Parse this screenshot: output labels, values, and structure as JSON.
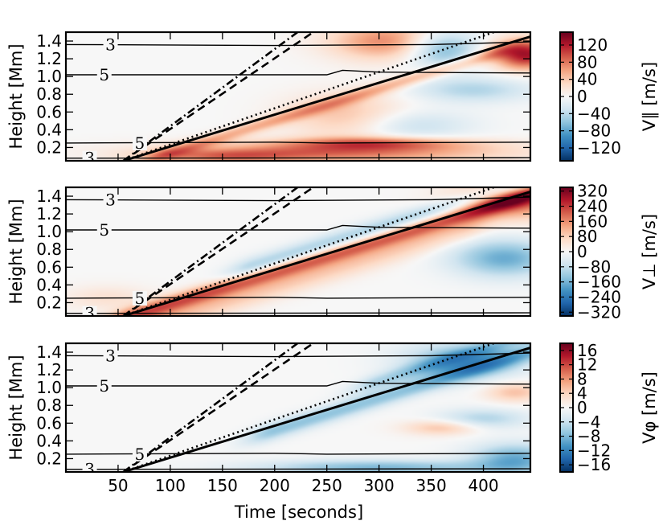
{
  "chart_data": {
    "type": "heatmap",
    "xlabel": "Time [seconds]",
    "ylabel": "Height [Mm]",
    "xlim": [
      0,
      445
    ],
    "ylim": [
      0.05,
      1.5
    ],
    "xticks": [
      50,
      100,
      150,
      200,
      250,
      300,
      350,
      400
    ],
    "yticks": [
      0.2,
      0.4,
      0.6,
      0.8,
      1.0,
      1.2,
      1.4
    ],
    "ytick_labels": [
      "0.2",
      "0.4",
      "0.6",
      "0.8",
      "1.0",
      "1.2",
      "1.4"
    ],
    "colormap": "RdBu_r",
    "colors": {
      "positive": "#67001f",
      "neutral": "#f7f7f7",
      "negative": "#053061"
    },
    "reference_lines": [
      {
        "name": "fast-mode-front",
        "style": "solid",
        "points": [
          [
            55,
            0.05
          ],
          [
            445,
            1.45
          ]
        ]
      },
      {
        "name": "dotted-line",
        "style": "dotted",
        "points": [
          [
            55,
            0.05
          ],
          [
            410,
            1.5
          ]
        ]
      },
      {
        "name": "dashed-line",
        "style": "dashed",
        "points": [
          [
            55,
            0.05
          ],
          [
            237,
            1.5
          ]
        ]
      },
      {
        "name": "dashdot-line",
        "style": "dashdot",
        "points": [
          [
            55,
            0.05
          ],
          [
            222,
            1.5
          ]
        ]
      }
    ],
    "contours": [
      {
        "label": "3",
        "label_x": 42,
        "points": [
          [
            0,
            1.36
          ],
          [
            200,
            1.35
          ],
          [
            350,
            1.36
          ],
          [
            445,
            1.39
          ]
        ]
      },
      {
        "label": "5",
        "label_x": 36,
        "points": [
          [
            0,
            1.02
          ],
          [
            250,
            1.02
          ],
          [
            265,
            1.07
          ],
          [
            300,
            1.05
          ],
          [
            445,
            1.04
          ]
        ]
      },
      {
        "label": "5",
        "label_x": 70,
        "points": [
          [
            0,
            0.25
          ],
          [
            200,
            0.26
          ],
          [
            250,
            0.25
          ],
          [
            445,
            0.26
          ]
        ]
      },
      {
        "label": "3",
        "label_x": 22,
        "points": [
          [
            0,
            0.08
          ],
          [
            445,
            0.085
          ]
        ]
      }
    ],
    "panels": [
      {
        "variable": "V_parallel",
        "colorbar_label": "V∥ [m/s]",
        "vmin": -150,
        "vmax": 150,
        "colorbar_ticks": [
          120,
          80,
          40,
          0,
          -40,
          -80,
          -120
        ],
        "colorbar_tick_labels": [
          "120",
          "80",
          "40",
          "0",
          "−40",
          "−80",
          "−120"
        ],
        "features": [
          {
            "kind": "blob",
            "sign": 1,
            "amp": 0.55,
            "t": 260,
            "h": 0.15,
            "st": 110,
            "sh": 0.08
          },
          {
            "kind": "blob",
            "sign": 1,
            "amp": 0.45,
            "t": 300,
            "h": 0.25,
            "st": 60,
            "sh": 0.05
          },
          {
            "kind": "blob",
            "sign": 1,
            "amp": 0.35,
            "t": 150,
            "h": 0.1,
            "st": 50,
            "sh": 0.05
          },
          {
            "kind": "blob",
            "sign": 1,
            "amp": 0.3,
            "t": 270,
            "h": 0.55,
            "st": 40,
            "sh": 0.18
          },
          {
            "kind": "blob",
            "sign": 1,
            "amp": 0.5,
            "t": 310,
            "h": 1.4,
            "st": 40,
            "sh": 0.15
          },
          {
            "kind": "blob",
            "sign": 1,
            "amp": 0.85,
            "t": 440,
            "h": 1.25,
            "st": 22,
            "sh": 0.12
          },
          {
            "kind": "blob",
            "sign": -1,
            "amp": 0.55,
            "t": 360,
            "h": 1.32,
            "st": 25,
            "sh": 0.15
          },
          {
            "kind": "blob",
            "sign": -1,
            "amp": 0.3,
            "t": 390,
            "h": 0.85,
            "st": 40,
            "sh": 0.1
          },
          {
            "kind": "blob",
            "sign": -1,
            "amp": 0.25,
            "t": 330,
            "h": 0.45,
            "st": 40,
            "sh": 0.12
          },
          {
            "kind": "band",
            "sign": 1,
            "amp": 0.35,
            "offset": 20,
            "width": 15,
            "tmin": 100,
            "tmax": 400
          }
        ]
      },
      {
        "variable": "V_perp",
        "colorbar_label": "V⊥ [m/s]",
        "vmin": -340,
        "vmax": 340,
        "colorbar_ticks": [
          320,
          240,
          160,
          80,
          0,
          -80,
          -160,
          -240,
          -320
        ],
        "colorbar_tick_labels": [
          "320",
          "240",
          "160",
          "80",
          "0",
          "−80",
          "−160",
          "−240",
          "−320"
        ],
        "features": [
          {
            "kind": "band",
            "sign": 1,
            "amp": 0.6,
            "offset": 8,
            "width": 20,
            "tmin": 60,
            "tmax": 450
          },
          {
            "kind": "band",
            "sign": 1,
            "amp": 0.25,
            "offset": 55,
            "width": 28,
            "tmin": 80,
            "tmax": 380
          },
          {
            "kind": "band",
            "sign": -1,
            "amp": 0.35,
            "offset": -30,
            "width": 22,
            "tmin": 180,
            "tmax": 450
          },
          {
            "kind": "blob",
            "sign": 1,
            "amp": 0.55,
            "t": 430,
            "h": 1.35,
            "st": 40,
            "sh": 0.15
          },
          {
            "kind": "blob",
            "sign": -1,
            "amp": 0.5,
            "t": 420,
            "h": 0.7,
            "st": 35,
            "sh": 0.15
          },
          {
            "kind": "blob",
            "sign": 1,
            "amp": 0.15,
            "t": 40,
            "h": 0.25,
            "st": 30,
            "sh": 0.1
          }
        ]
      },
      {
        "variable": "V_phi",
        "colorbar_label": "Vφ [m/s]",
        "vmin": -18,
        "vmax": 18,
        "colorbar_ticks": [
          16,
          12,
          8,
          4,
          0,
          -4,
          -8,
          -12,
          -16
        ],
        "colorbar_tick_labels": [
          "16",
          "12",
          "8",
          "4",
          "0",
          "−4",
          "−8",
          "−12",
          "−16"
        ],
        "features": [
          {
            "kind": "band",
            "sign": -1,
            "amp": 0.4,
            "offset": 15,
            "width": 20,
            "tmin": 200,
            "tmax": 450
          },
          {
            "kind": "band",
            "sign": -1,
            "amp": 0.3,
            "offset": -40,
            "width": 18,
            "tmin": 300,
            "tmax": 450
          },
          {
            "kind": "blob",
            "sign": -1,
            "amp": 0.45,
            "t": 380,
            "h": 1.3,
            "st": 40,
            "sh": 0.15
          },
          {
            "kind": "blob",
            "sign": -1,
            "amp": 0.45,
            "t": 300,
            "h": 0.1,
            "st": 80,
            "sh": 0.06
          },
          {
            "kind": "blob",
            "sign": -1,
            "amp": 0.5,
            "t": 430,
            "h": 0.2,
            "st": 30,
            "sh": 0.12
          },
          {
            "kind": "blob",
            "sign": 1,
            "amp": 0.3,
            "t": 360,
            "h": 0.55,
            "st": 25,
            "sh": 0.06
          },
          {
            "kind": "blob",
            "sign": 1,
            "amp": 0.3,
            "t": 430,
            "h": 0.95,
            "st": 20,
            "sh": 0.08
          },
          {
            "kind": "blob",
            "sign": -1,
            "amp": 0.3,
            "t": 400,
            "h": 0.65,
            "st": 30,
            "sh": 0.08
          }
        ]
      }
    ]
  }
}
